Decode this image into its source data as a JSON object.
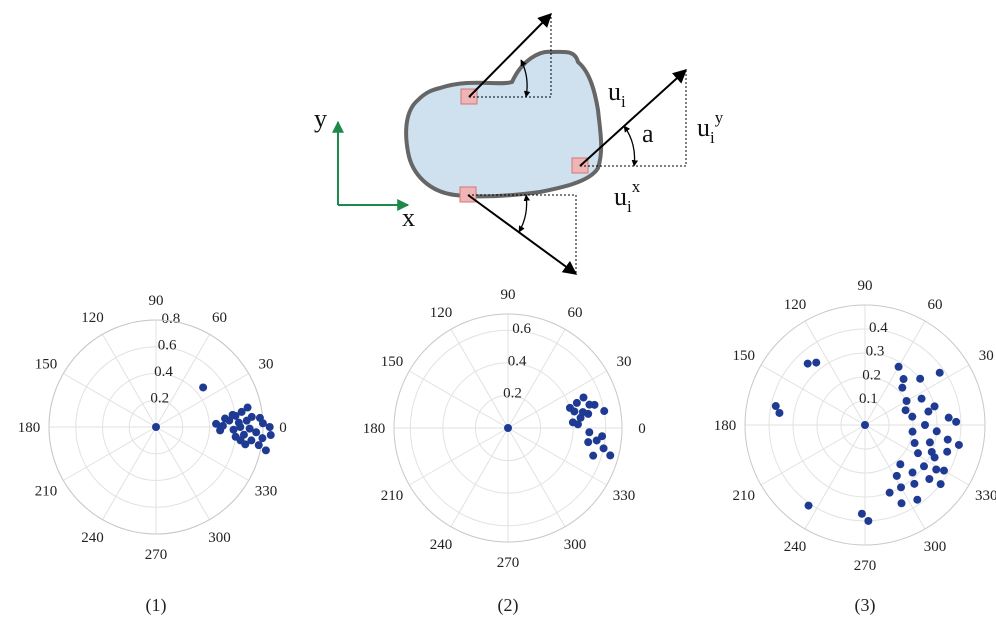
{
  "diagram": {
    "axis_y": "y",
    "axis_x": "x",
    "vector": {
      "base": "u",
      "sub": "i"
    },
    "angle": "a",
    "component_y": {
      "base": "u",
      "sub": "i",
      "sup": "y"
    },
    "component_x": {
      "base": "u",
      "sub": "i",
      "sup": "x"
    }
  },
  "chart_data": [
    {
      "type": "polar_scatter",
      "caption": "(1)",
      "color": "#1f3a93",
      "rlim": [
        0,
        0.8
      ],
      "rticks": [
        0.2,
        0.4,
        0.6,
        0.8
      ],
      "thetaticks": [
        0,
        30,
        60,
        90,
        120,
        150,
        180,
        210,
        240,
        270,
        300,
        330
      ],
      "theta": [
        40,
        0,
        5,
        8,
        3,
        358,
        10,
        12,
        6,
        355,
        352,
        357,
        354,
        2,
        350,
        348,
        0,
        356,
        4,
        1,
        359,
        7,
        353,
        9,
        351,
        3,
        357,
        5,
        349,
        0
      ],
      "r": [
        0.46,
        0,
        0.55,
        0.6,
        0.62,
        0.58,
        0.65,
        0.7,
        0.72,
        0.66,
        0.72,
        0.75,
        0.8,
        0.8,
        0.78,
        0.84,
        0.85,
        0.86,
        0.68,
        0.5,
        0.7,
        0.52,
        0.6,
        0.58,
        0.64,
        0.45,
        0.48,
        0.78,
        0.68,
        0.63
      ]
    },
    {
      "type": "polar_scatter",
      "caption": "(2)",
      "color": "#1f3a93",
      "rlim": [
        0,
        0.7
      ],
      "rticks": [
        0.2,
        0.4,
        0.6
      ],
      "thetaticks": [
        0,
        30,
        60,
        90,
        120,
        150,
        180,
        210,
        240,
        270,
        300,
        330
      ],
      "theta": [
        18,
        14,
        12,
        10,
        15,
        8,
        5,
        3,
        20,
        16,
        10,
        357,
        352,
        348,
        345,
        350,
        342,
        355,
        22,
        0
      ],
      "r": [
        0.4,
        0.42,
        0.47,
        0.5,
        0.55,
        0.45,
        0.4,
        0.43,
        0.45,
        0.52,
        0.6,
        0.5,
        0.55,
        0.6,
        0.65,
        0.5,
        0.55,
        0.58,
        0.5,
        0
      ]
    },
    {
      "type": "polar_scatter",
      "caption": "(3)",
      "color": "#1f3a93",
      "rlim": [
        0,
        0.5
      ],
      "rticks": [
        0.1,
        0.2,
        0.3,
        0.4
      ],
      "thetaticks": [
        0,
        30,
        60,
        90,
        120,
        150,
        180,
        210,
        240,
        270,
        300,
        330
      ],
      "theta": [
        133,
        128,
        172,
        168,
        235,
        268,
        272,
        0,
        60,
        50,
        45,
        40,
        35,
        30,
        20,
        10,
        0,
        355,
        350,
        345,
        340,
        335,
        330,
        325,
        320,
        315,
        310,
        305,
        300,
        295,
        5,
        15,
        352,
        342,
        332,
        322,
        312,
        302,
        290,
        25,
        2,
        348,
        12,
        338,
        328
      ],
      "r": [
        0.35,
        0.33,
        0.36,
        0.38,
        0.41,
        0.37,
        0.4,
        0,
        0.28,
        0.25,
        0.22,
        0.3,
        0.38,
        0.2,
        0.18,
        0.2,
        0.25,
        0.3,
        0.35,
        0.28,
        0.22,
        0.32,
        0.38,
        0.3,
        0.35,
        0.28,
        0.32,
        0.38,
        0.3,
        0.36,
        0.35,
        0.3,
        0.2,
        0.36,
        0.25,
        0.4,
        0.22,
        0.25,
        0.3,
        0.26,
        0.38,
        0.4,
        0.27,
        0.3,
        0.35
      ]
    }
  ]
}
